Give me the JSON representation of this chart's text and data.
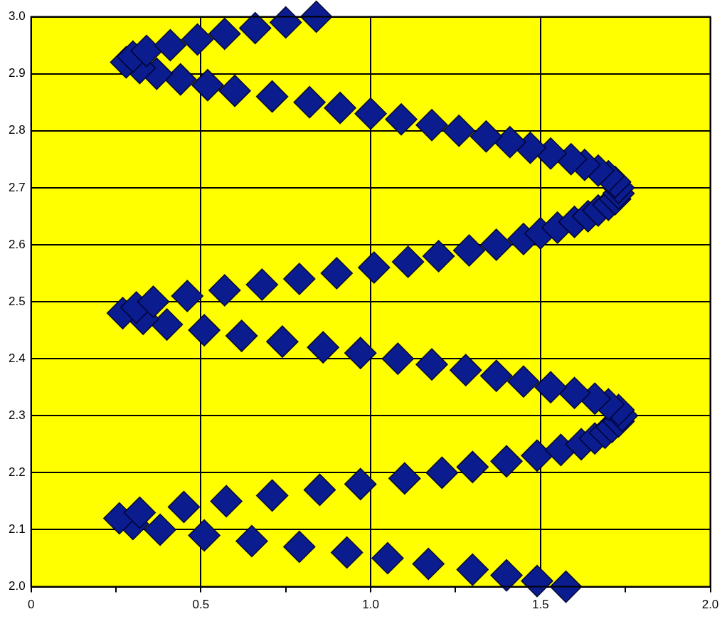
{
  "chart_data": {
    "type": "scatter",
    "x": [
      1.575,
      1.49,
      1.4,
      1.3,
      1.17,
      1.05,
      0.93,
      0.79,
      0.65,
      0.51,
      0.38,
      0.3,
      0.26,
      0.32,
      0.45,
      0.575,
      0.71,
      0.85,
      0.97,
      1.1,
      1.21,
      1.3,
      1.4,
      1.49,
      1.56,
      1.62,
      1.66,
      1.69,
      1.71,
      1.73,
      1.74,
      1.73,
      1.7,
      1.66,
      1.6,
      1.53,
      1.45,
      1.37,
      1.28,
      1.18,
      1.08,
      0.97,
      0.86,
      0.74,
      0.62,
      0.51,
      0.4,
      0.33,
      0.27,
      0.31,
      0.36,
      0.46,
      0.57,
      0.68,
      0.79,
      0.9,
      1.01,
      1.11,
      1.2,
      1.29,
      1.37,
      1.45,
      1.5,
      1.55,
      1.6,
      1.64,
      1.67,
      1.7,
      1.72,
      1.73,
      1.73,
      1.72,
      1.7,
      1.67,
      1.63,
      1.59,
      1.53,
      1.47,
      1.41,
      1.34,
      1.26,
      1.18,
      1.09,
      1.0,
      0.91,
      0.82,
      0.71,
      0.6,
      0.52,
      0.44,
      0.37,
      0.32,
      0.28,
      0.3,
      0.34,
      0.41,
      0.49,
      0.57,
      0.66,
      0.75,
      0.84
    ],
    "series": [
      {
        "color": "#0a1c8e",
        "values": [
          2.0,
          2.01,
          2.02,
          2.03,
          2.04,
          2.05,
          2.06,
          2.07,
          2.08,
          2.09,
          2.1,
          2.11,
          2.12,
          2.13,
          2.14,
          2.15,
          2.16,
          2.17,
          2.18,
          2.19,
          2.2,
          2.21,
          2.22,
          2.23,
          2.24,
          2.25,
          2.26,
          2.27,
          2.28,
          2.29,
          2.3,
          2.31,
          2.32,
          2.33,
          2.34,
          2.35,
          2.36,
          2.37,
          2.38,
          2.39,
          2.4,
          2.41,
          2.42,
          2.43,
          2.44,
          2.45,
          2.46,
          2.47,
          2.48,
          2.49,
          2.5,
          2.51,
          2.52,
          2.53,
          2.54,
          2.55,
          2.56,
          2.57,
          2.58,
          2.59,
          2.6,
          2.61,
          2.62,
          2.63,
          2.64,
          2.65,
          2.66,
          2.67,
          2.68,
          2.69,
          2.7,
          2.71,
          2.72,
          2.73,
          2.74,
          2.75,
          2.76,
          2.77,
          2.78,
          2.79,
          2.8,
          2.81,
          2.82,
          2.83,
          2.84,
          2.85,
          2.86,
          2.87,
          2.88,
          2.89,
          2.9,
          2.91,
          2.92,
          2.93,
          2.94,
          2.95,
          2.96,
          2.97,
          2.98,
          2.99,
          3.0
        ]
      }
    ],
    "xlim": [
      0,
      2
    ],
    "xticks": [
      0,
      {
        "value": 0.25,
        "label": null
      },
      0.5,
      {
        "value": 0.75,
        "label": null
      },
      {
        "value": 1,
        "label": "1.0"
      },
      {
        "value": 1.25,
        "label": null
      },
      1.5,
      {
        "value": 1.75,
        "label": null
      },
      {
        "value": 2,
        "label": "2.0"
      }
    ],
    "ylim": [
      2,
      3
    ],
    "yticks": [
      {
        "value": 2,
        "label": "2.0"
      },
      2.1,
      2.2,
      2.3,
      2.4,
      2.5,
      2.6,
      2.7,
      2.8,
      2.9,
      {
        "value": 3,
        "label": "3.0"
      }
    ],
    "grid": true,
    "legend": false,
    "marker": "diamond"
  }
}
